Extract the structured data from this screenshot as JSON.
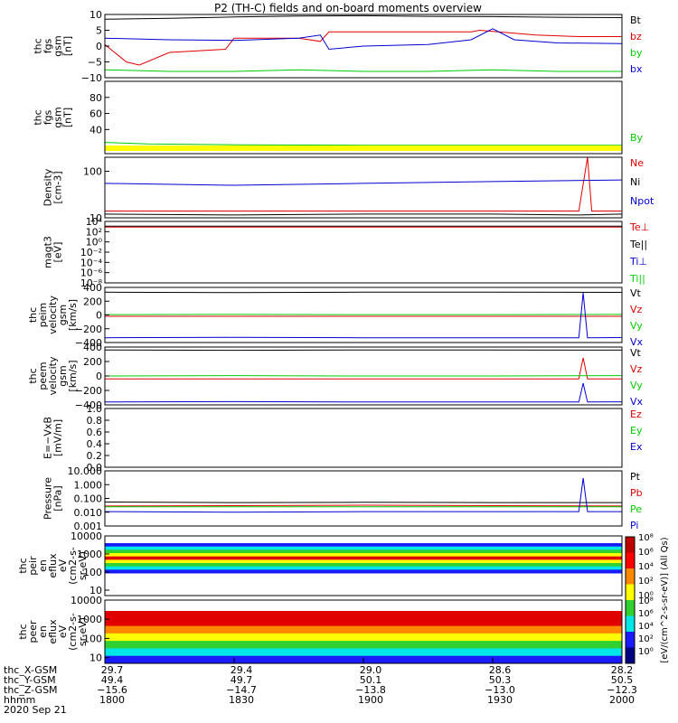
{
  "title": "P2 (TH-C) fields and on-board moments overview",
  "colors": {
    "black": "#000000",
    "red": "#e00000",
    "green": "#00cc00",
    "blue": "#0000d0",
    "yellow": "#ffff00",
    "darkred": "#a00000"
  },
  "chart_data": [
    {
      "type": "line",
      "panel": "fgs",
      "ylabel": [
        "thc",
        "fgs",
        "gsm",
        "[nT]"
      ],
      "ylim": [
        -10,
        10
      ],
      "yticks": [
        "10",
        "5",
        "0",
        "−5",
        "−10"
      ],
      "series": [
        {
          "name": "Bt",
          "color": "black",
          "x": [
            1800,
            1815,
            1830,
            1845,
            1900,
            1915,
            1930,
            1945,
            2000
          ],
          "y": [
            8.5,
            8.8,
            9.2,
            9.5,
            9.6,
            9.4,
            9.3,
            9.1,
            9.0
          ]
        },
        {
          "name": "bz",
          "color": "red",
          "x": [
            1800,
            1805,
            1808,
            1815,
            1828,
            1830,
            1845,
            1850,
            1852,
            1900,
            1915,
            1925,
            1927,
            1940,
            1950,
            2000
          ],
          "y": [
            0.5,
            -5.0,
            -6.0,
            -2.0,
            -1.0,
            2.5,
            2.5,
            1.5,
            4.5,
            4.5,
            4.5,
            4.5,
            5.0,
            3.5,
            3.0,
            3.0
          ]
        },
        {
          "name": "by",
          "color": "green",
          "x": [
            1800,
            1815,
            1830,
            1845,
            1900,
            1915,
            1930,
            1945,
            2000
          ],
          "y": [
            -7.5,
            -8.0,
            -8.0,
            -7.5,
            -8.0,
            -8.0,
            -7.5,
            -8.0,
            -8.0
          ]
        },
        {
          "name": "bx",
          "color": "blue",
          "x": [
            1800,
            1815,
            1830,
            1845,
            1850,
            1852,
            1900,
            1915,
            1925,
            1930,
            1935,
            1945,
            2000
          ],
          "y": [
            2.5,
            2.0,
            1.8,
            2.5,
            3.5,
            -1.0,
            0.0,
            0.5,
            2.0,
            5.5,
            2.0,
            1.0,
            0.8
          ]
        }
      ],
      "legend": [
        "Bt",
        "bz",
        "by",
        "bx"
      ]
    },
    {
      "type": "line",
      "panel": "fgs_dsl",
      "ylabel": [
        "thc",
        "fgs",
        "gsm",
        "[nT]"
      ],
      "ylim": [
        10,
        100
      ],
      "yticks": [
        "80",
        "60",
        "40"
      ],
      "series": [
        {
          "name": "By",
          "color": "green",
          "x": [
            1800,
            1810,
            1830,
            1900,
            1930,
            2000
          ],
          "y": [
            24,
            22,
            21,
            20.5,
            20.5,
            20.5
          ]
        }
      ],
      "legend": [
        "By"
      ]
    },
    {
      "type": "line",
      "panel": "density",
      "ylabel": [
        "Density",
        "[cm-3]"
      ],
      "yscale": "log",
      "ylim": [
        10,
        200
      ],
      "yticks": [
        "100",
        "10"
      ],
      "series": [
        {
          "name": "Ne",
          "color": "red",
          "x": [
            1800,
            1830,
            1900,
            1930,
            1950,
            1952,
            1953,
            2000
          ],
          "y": [
            14,
            14,
            14,
            14,
            14,
            200,
            14,
            14
          ]
        },
        {
          "name": "Ni",
          "color": "blue",
          "x": [
            1800,
            1830,
            1900,
            1930,
            2000
          ],
          "y": [
            55,
            50,
            55,
            60,
            65
          ]
        },
        {
          "name": "Npot",
          "color": "black",
          "x": [
            1800,
            1830,
            1900,
            1930,
            1950,
            2000
          ],
          "y": [
            12,
            11.5,
            12,
            12,
            11.5,
            12
          ]
        }
      ],
      "legend": [
        "Ne",
        "Ni",
        "Npot"
      ]
    },
    {
      "type": "line",
      "panel": "magt3",
      "ylabel": [
        "magt3",
        "[eV]"
      ],
      "yscale": "log",
      "ylim": [
        1e-08,
        10000.0
      ],
      "yticks": [
        "10⁴",
        "10²",
        "10⁰",
        "10⁻²",
        "10⁻⁴",
        "10⁻⁶",
        "10⁻⁸"
      ],
      "series": [
        {
          "name": "Te⊥",
          "color": "red",
          "x": [
            1800,
            2000
          ],
          "y": [
            800,
            800
          ]
        },
        {
          "name": "Te||",
          "color": "black",
          "x": [
            1800,
            2000
          ],
          "y": [
            1200,
            1200
          ]
        }
      ],
      "legend": [
        "Te⊥",
        "Te||",
        "Ti⊥",
        "Ti||"
      ]
    },
    {
      "type": "line",
      "panel": "peim",
      "ylabel": [
        "thc",
        "peim",
        "velocity",
        "gsm",
        "[km/s]"
      ],
      "ylim": [
        -400,
        400
      ],
      "yticks": [
        "400",
        "200",
        "0",
        "−200",
        "−400"
      ],
      "series": [
        {
          "name": "Vt",
          "color": "black",
          "x": [
            1800,
            1830,
            1900,
            1930,
            2000
          ],
          "y": [
            330,
            325,
            330,
            330,
            328
          ]
        },
        {
          "name": "Vz",
          "color": "red",
          "x": [
            1800,
            1830,
            1900,
            1930,
            2000
          ],
          "y": [
            -20,
            -20,
            -20,
            -20,
            -20
          ]
        },
        {
          "name": "Vy",
          "color": "green",
          "x": [
            1800,
            1830,
            1900,
            1930,
            2000
          ],
          "y": [
            5,
            8,
            5,
            5,
            8
          ]
        },
        {
          "name": "Vx",
          "color": "blue",
          "x": [
            1800,
            1830,
            1900,
            1930,
            1950,
            1951,
            1952,
            2000
          ],
          "y": [
            -330,
            -325,
            -330,
            -330,
            -330,
            320,
            -330,
            -328
          ]
        }
      ],
      "legend": [
        "Vt",
        "Vz",
        "Vy",
        "Vx"
      ]
    },
    {
      "type": "line",
      "panel": "peem",
      "ylabel": [
        "thc",
        "peem",
        "velocity",
        "gsm",
        "[km/s]"
      ],
      "ylim": [
        -400,
        400
      ],
      "yticks": [
        "400",
        "200",
        "0",
        "−200",
        "−400"
      ],
      "series": [
        {
          "name": "Vt",
          "color": "black",
          "x": [
            1800,
            1830,
            1900,
            1930,
            2000
          ],
          "y": [
            360,
            355,
            360,
            360,
            358
          ]
        },
        {
          "name": "Vz",
          "color": "red",
          "x": [
            1800,
            1830,
            1900,
            1930,
            1950,
            1951,
            1952,
            2000
          ],
          "y": [
            -40,
            -40,
            -40,
            -40,
            -40,
            250,
            -40,
            -40
          ]
        },
        {
          "name": "Vy",
          "color": "green",
          "x": [
            1800,
            1830,
            1900,
            1930,
            2000
          ],
          "y": [
            0,
            5,
            0,
            0,
            5
          ]
        },
        {
          "name": "Vx",
          "color": "blue",
          "x": [
            1800,
            1830,
            1900,
            1930,
            1950,
            1951,
            1952,
            2000
          ],
          "y": [
            -360,
            -355,
            -360,
            -360,
            -360,
            -100,
            -360,
            -358
          ]
        }
      ],
      "legend": [
        "Vt",
        "Vz",
        "Vy",
        "Vx"
      ]
    },
    {
      "type": "line",
      "panel": "efield",
      "ylabel": [
        "E=−VxB",
        "[mV/m]"
      ],
      "ylim": [
        0.0,
        1.0
      ],
      "yticks": [
        "1.0",
        "0.8",
        "0.6",
        "0.4",
        "0.2",
        "0.0"
      ],
      "series": [],
      "legend": [
        "Ez",
        "Ey",
        "Ex"
      ]
    },
    {
      "type": "line",
      "panel": "pressure",
      "ylabel": [
        "Pressure",
        "[nPa]"
      ],
      "yscale": "log",
      "ylim": [
        0.001,
        10.0
      ],
      "yticks": [
        "10.000",
        "1.000",
        "0.100",
        "0.010",
        "0.001"
      ],
      "series": [
        {
          "name": "Pt",
          "color": "black",
          "x": [
            1800,
            1830,
            1900,
            1930,
            2000
          ],
          "y": [
            0.055,
            0.05,
            0.052,
            0.05,
            0.05
          ]
        },
        {
          "name": "Pb",
          "color": "red",
          "x": [
            1800,
            1830,
            1900,
            1930,
            2000
          ],
          "y": [
            0.028,
            0.03,
            0.032,
            0.03,
            0.028
          ]
        },
        {
          "name": "Pe",
          "color": "green",
          "x": [
            1800,
            1830,
            1900,
            1930,
            2000
          ],
          "y": [
            0.025,
            0.025,
            0.025,
            0.025,
            0.025
          ]
        },
        {
          "name": "Pi",
          "color": "blue",
          "x": [
            1800,
            1830,
            1900,
            1930,
            1950,
            1951,
            1952,
            2000
          ],
          "y": [
            0.011,
            0.01,
            0.011,
            0.011,
            0.011,
            3.0,
            0.011,
            0.011
          ]
        }
      ],
      "legend": [
        "Pt",
        "Pb",
        "Pe",
        "Pi"
      ]
    },
    {
      "type": "heatmap",
      "panel": "peir",
      "ylabel": [
        "thc",
        "peir",
        "en",
        "eflux",
        "eV",
        "(cm2-s-",
        "sr-eV)"
      ],
      "yscale": "log",
      "ylim": [
        5,
        10000
      ],
      "yticks": [
        "10000",
        "1000",
        "100",
        "10"
      ],
      "band_colors": [
        "blue",
        "cyan",
        "green",
        "yellow",
        "red",
        "yellow",
        "green",
        "cyan",
        "blue"
      ]
    },
    {
      "type": "heatmap",
      "panel": "peer",
      "ylabel": [
        "thc",
        "peer",
        "en",
        "eflux",
        "eV",
        "(cm2-s-",
        "sr-eV)"
      ],
      "yscale": "log",
      "ylim": [
        5,
        10000
      ],
      "yticks": [
        "10000",
        "1000",
        "100",
        "10"
      ],
      "band_colors": [
        "red",
        "red",
        "orange",
        "yellow",
        "green",
        "cyan",
        "blue"
      ]
    }
  ],
  "colorbar": {
    "ticks": [
      "10⁸",
      "10⁶",
      "10⁴",
      "10²",
      "10⁰"
    ],
    "label": "[eV/(cm^2-s-sr-eV)] (All Qs)"
  },
  "xaxis": {
    "rows": [
      {
        "label": "thc_X-GSM",
        "values": [
          "29.7",
          "29.4",
          "29.0",
          "28.6",
          "28.2"
        ]
      },
      {
        "label": "thc_Y-GSM",
        "values": [
          "49.4",
          "49.7",
          "50.1",
          "50.3",
          "50.5"
        ]
      },
      {
        "label": "thc_Z-GSM",
        "values": [
          "−15.6",
          "−14.7",
          "−13.8",
          "−13.0",
          "−12.3"
        ]
      },
      {
        "label": "hhmm",
        "values": [
          "1800",
          "1830",
          "1900",
          "1930",
          "2000"
        ]
      }
    ],
    "date": "2020 Sep 21"
  }
}
